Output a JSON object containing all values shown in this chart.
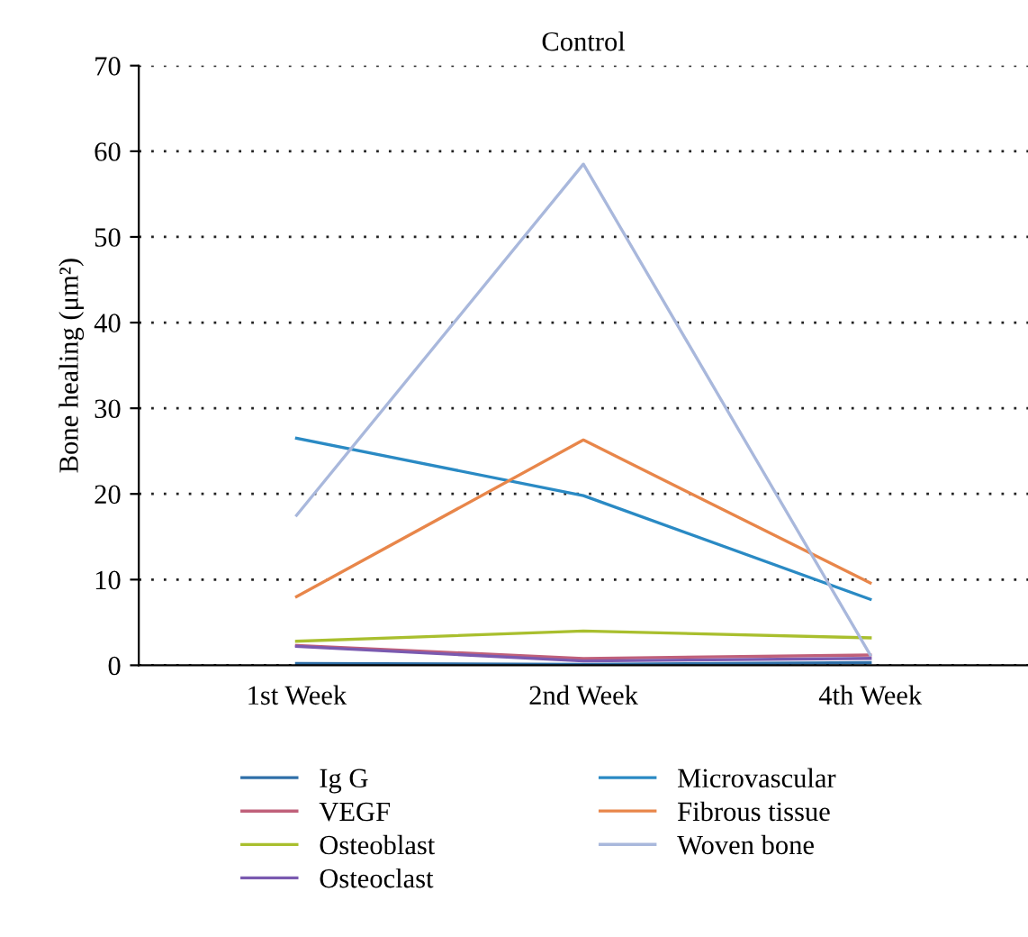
{
  "chart_data": {
    "type": "line",
    "title": "Control",
    "ylabel": "Bone healing (μm²)",
    "categories": [
      "1st Week",
      "2nd Week",
      "4th Week"
    ],
    "series": [
      {
        "name": "Ig G",
        "color": "#2f6fa8",
        "values": [
          0.2,
          0.1,
          0.3
        ]
      },
      {
        "name": "VEGF",
        "color": "#c0607a",
        "values": [
          2.3,
          0.8,
          1.2
        ]
      },
      {
        "name": "Osteoblast",
        "color": "#a9bf2e",
        "values": [
          2.8,
          4.0,
          3.2
        ]
      },
      {
        "name": "Osteoclast",
        "color": "#7a5ab0",
        "values": [
          2.2,
          0.5,
          0.8
        ]
      },
      {
        "name": "Microvascular",
        "color": "#2a8ac4",
        "values": [
          26.5,
          19.8,
          7.7
        ]
      },
      {
        "name": "Fibrous tissue",
        "color": "#e8864a",
        "values": [
          8.0,
          26.3,
          9.6
        ]
      },
      {
        "name": "Woven bone",
        "color": "#a9b8dc",
        "values": [
          17.5,
          58.5,
          1.2
        ]
      }
    ],
    "ylim": [
      0,
      70
    ],
    "yticks": [
      0,
      10,
      20,
      30,
      40,
      50,
      60,
      70
    ],
    "grid": "y",
    "legend": "bottom",
    "marker": "none",
    "line_style": "solid"
  }
}
